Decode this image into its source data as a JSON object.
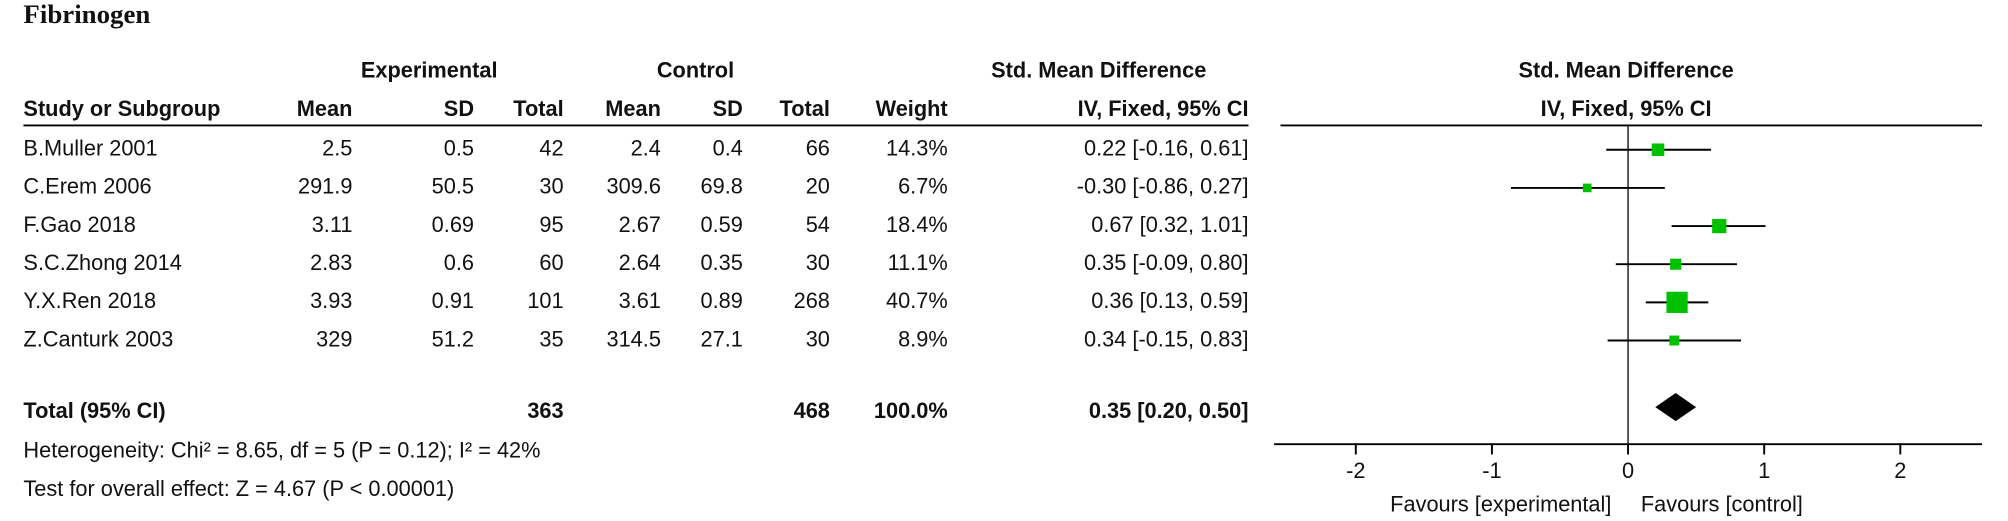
{
  "chart_data": {
    "type": "forest",
    "title": "Fibrinogen",
    "group_headers": [
      "Experimental",
      "Control",
      "Std. Mean Difference",
      "Std. Mean Difference"
    ],
    "column_headers": [
      "Study or Subgroup",
      "Mean",
      "SD",
      "Total",
      "Mean",
      "SD",
      "Total",
      "Weight",
      "IV, Fixed, 95% CI",
      "IV, Fixed, 95% CI"
    ],
    "studies": [
      "B.Muller 2001",
      "C.Erem 2006",
      "F.Gao 2018",
      "S.C.Zhong 2014",
      "Y.X.Ren 2018",
      "Z.Canturk 2003"
    ],
    "exp_mean": [
      2.5,
      291.9,
      3.11,
      2.83,
      3.93,
      329
    ],
    "exp_sd": [
      0.5,
      50.5,
      0.69,
      0.6,
      0.91,
      51.2
    ],
    "exp_total": [
      42,
      30,
      95,
      60,
      101,
      35
    ],
    "ctrl_mean": [
      2.4,
      309.6,
      2.67,
      2.64,
      3.61,
      314.5
    ],
    "ctrl_sd": [
      0.4,
      69.8,
      0.59,
      0.35,
      0.89,
      27.1
    ],
    "ctrl_total": [
      66,
      20,
      54,
      30,
      268,
      30
    ],
    "weights": [
      14.3,
      6.7,
      18.4,
      11.1,
      40.7,
      8.9
    ],
    "weight_labels": [
      "14.3%",
      "6.7%",
      "18.4%",
      "11.1%",
      "40.7%",
      "8.9%"
    ],
    "values": [
      0.22,
      -0.3,
      0.67,
      0.35,
      0.36,
      0.34
    ],
    "ci_low": [
      -0.16,
      -0.86,
      0.32,
      -0.09,
      0.13,
      -0.15
    ],
    "ci_high": [
      0.61,
      0.27,
      1.01,
      0.8,
      0.59,
      0.83
    ],
    "value_labels": [
      "0.22 [-0.16, 0.61]",
      "-0.30 [-0.86, 0.27]",
      "0.67 [0.32, 1.01]",
      "0.35 [-0.09, 0.80]",
      "0.36 [0.13, 0.59]",
      "0.34 [-0.15, 0.83]"
    ],
    "color": "#00c000",
    "total": {
      "label": "Total (95% CI)",
      "exp_total": 363,
      "ctrl_total": 468,
      "weight": 100,
      "weight_label": "100.0%",
      "value": 0.35,
      "ci_low": 0.2,
      "ci_high": 0.5,
      "value_label": "0.35 [0.20, 0.50]"
    },
    "heterogeneity": "Heterogeneity: Chi² = 8.65, df = 5 (P = 0.12); I² = 42%",
    "overall_effect": "Test for overall effect: Z = 4.67 (P < 0.00001)",
    "xlim": [
      -2.6,
      2.6
    ],
    "xticks": [
      -2,
      -1,
      0,
      1,
      2
    ],
    "x_labels": [
      "Favours [experimental]",
      "Favours [control]"
    ]
  }
}
